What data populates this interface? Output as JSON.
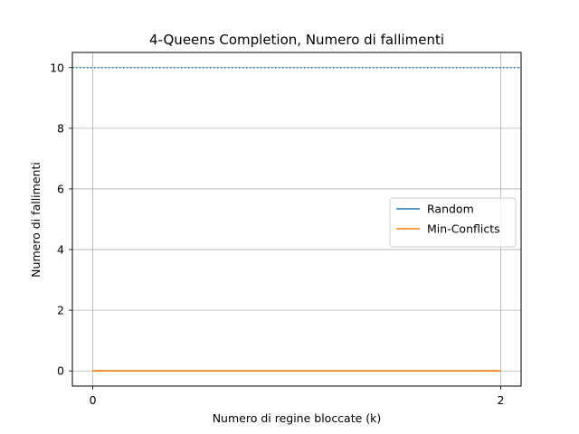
{
  "chart_data": {
    "type": "line",
    "title": "4-Queens Completion, Numero di fallimenti",
    "xlabel": "Numero di regine bloccate (k)",
    "ylabel": "Numero di fallimenti",
    "x": [
      0,
      2
    ],
    "xticks": [
      0,
      2
    ],
    "yticks": [
      0,
      2,
      4,
      6,
      8,
      10
    ],
    "xlim": [
      -0.1,
      2.1
    ],
    "ylim": [
      -0.5,
      10.5
    ],
    "grid": true,
    "legend_position": "center-right",
    "series": [
      {
        "name": "Random",
        "values": [
          0,
          0
        ],
        "color": "#1f77b4"
      },
      {
        "name": "Min-Conflicts",
        "values": [
          0,
          0
        ],
        "color": "#ff7f0e"
      }
    ],
    "reference_lines": [
      {
        "orientation": "horizontal",
        "y": 10,
        "style": "dotted",
        "color": "#1f77b4"
      }
    ]
  }
}
